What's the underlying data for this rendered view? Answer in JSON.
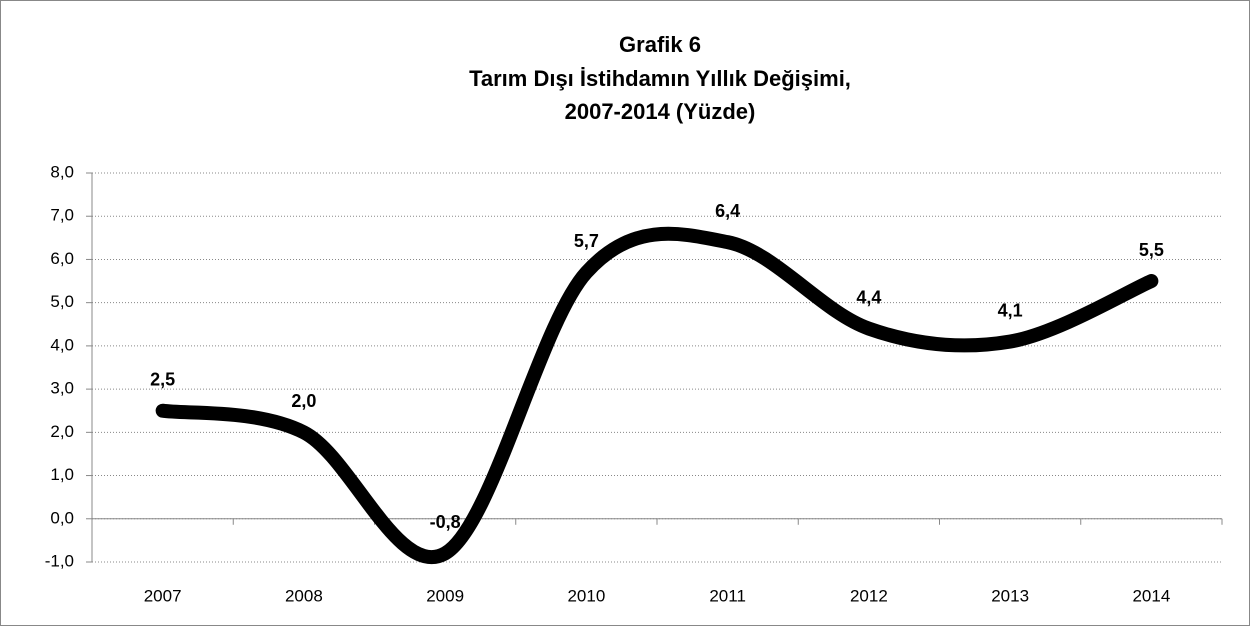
{
  "chart_data": {
    "type": "line",
    "title": [
      "Grafik 6",
      "Tarım Dışı İstihdamın Yıllık Değişimi,",
      "2007-2014 (Yüzde)"
    ],
    "categories": [
      "2007",
      "2008",
      "2009",
      "2010",
      "2011",
      "2012",
      "2013",
      "2014"
    ],
    "series": [
      {
        "color": "#000000",
        "values": [
          2.5,
          2.0,
          -0.8,
          5.7,
          6.4,
          4.4,
          4.1,
          5.5
        ],
        "value_labels": [
          "2,5",
          "2,0",
          "-0,8",
          "5,7",
          "6,4",
          "4,4",
          "4,1",
          "5,5"
        ]
      }
    ],
    "ylim": [
      -1,
      8
    ],
    "yticks": [
      {
        "value": -1,
        "label": "-1,0"
      },
      {
        "value": 0,
        "label": "0,0"
      },
      {
        "value": 1,
        "label": "1,0"
      },
      {
        "value": 2,
        "label": "2,0"
      },
      {
        "value": 3,
        "label": "3,0"
      },
      {
        "value": 4,
        "label": "4,0"
      },
      {
        "value": 5,
        "label": "5,0"
      },
      {
        "value": 6,
        "label": "6,0"
      },
      {
        "value": 7,
        "label": "7,0"
      },
      {
        "value": 8,
        "label": "8,0"
      }
    ],
    "grid": true,
    "smooth": true
  }
}
